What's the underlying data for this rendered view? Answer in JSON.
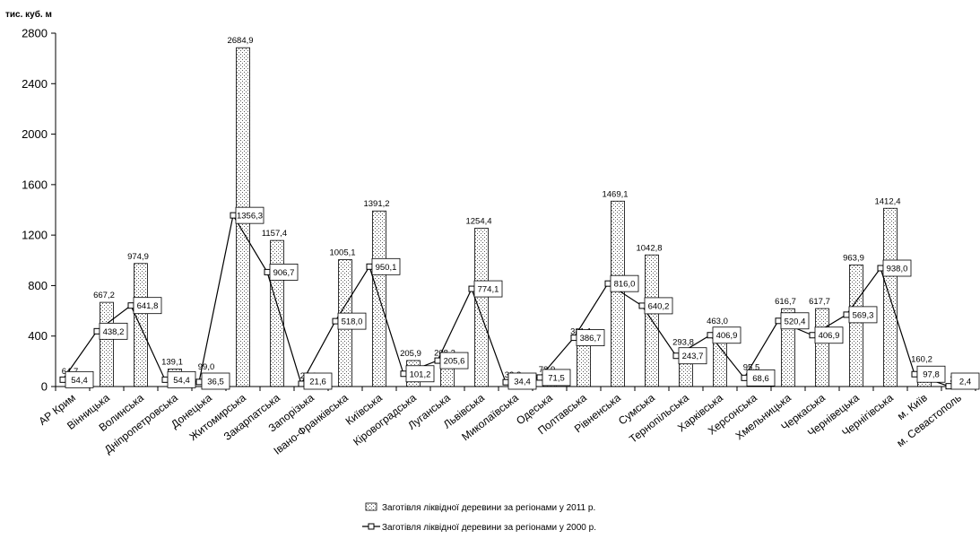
{
  "chart_data": {
    "type": "bar",
    "ylabel": "тис. куб. м",
    "ylim": [
      0,
      2800
    ],
    "yticks": [
      0,
      400,
      800,
      1200,
      1600,
      2000,
      2400,
      2800
    ],
    "legend_position": "bottom",
    "grid": false,
    "categories": [
      "АР Крим",
      "Вінницька",
      "Волинська",
      "Дніпропетровська",
      "Донецька",
      "Житомирська",
      "Закарпатська",
      "Запорізька",
      "Івано-Франківська",
      "Київська",
      "Кіровоградська",
      "Луганська",
      "Львівська",
      "Миколаївська",
      "Одеська",
      "Полтавська",
      "Рівненська",
      "Сумська",
      "Тернопільська",
      "Харківська",
      "Херсонська",
      "Хмельницька",
      "Черкаська",
      "Чернівецька",
      "Чернігівська",
      "м. Київ",
      "м. Севастополь"
    ],
    "series": [
      {
        "name": "Заготівля ліквідної деревини за регіонами у 2011 р.",
        "kind": "bar",
        "values": [
          64.7,
          667.2,
          974.9,
          139.1,
          99.0,
          2684.9,
          1157.4,
          27.0,
          1005.1,
          1391.2,
          205.9,
          208.2,
          1254.4,
          33.8,
          78.9,
          381.1,
          1469.1,
          1042.8,
          293.8,
          463.0,
          95.5,
          616.7,
          617.7,
          963.9,
          1412.4,
          160.2,
          2.4
        ],
        "labels": [
          "64,7",
          "667,2",
          "974,9",
          "139,1",
          "99,0",
          "2684,9",
          "1157,4",
          "27,0",
          "1005,1",
          "1391,2",
          "205,9",
          "208,2",
          "1254,4",
          "33,8",
          "78,9",
          "381,1",
          "1469,1",
          "1042,8",
          "293,8",
          "463,0",
          "95,5",
          "616,7",
          "617,7",
          "963,9",
          "1412,4",
          "160,2",
          "2,4"
        ]
      },
      {
        "name": "Заготівля ліквідної деревини за регіонами у 2000 р.",
        "kind": "line",
        "values": [
          54.4,
          438.2,
          641.8,
          54.4,
          36.5,
          1356.3,
          906.7,
          21.6,
          518.0,
          950.1,
          101.2,
          205.6,
          774.1,
          34.4,
          71.5,
          386.7,
          816.0,
          640.2,
          243.7,
          406.9,
          68.6,
          520.4,
          406.9,
          569.3,
          938.0,
          97.8,
          2.4
        ],
        "labels": [
          "54,4",
          "438,2",
          "641,8",
          "54,4",
          "36,5",
          "1356,3",
          "906,7",
          "21,6",
          "518,0",
          "950,1",
          "101,2",
          "205,6",
          "774,1",
          "34,4",
          "71,5",
          "386,7",
          "816,0",
          "640,2",
          "243,7",
          "406,9",
          "68,6",
          "520,4",
          "406,9",
          "569,3",
          "938,0",
          "97,8",
          "2,4"
        ]
      }
    ]
  }
}
